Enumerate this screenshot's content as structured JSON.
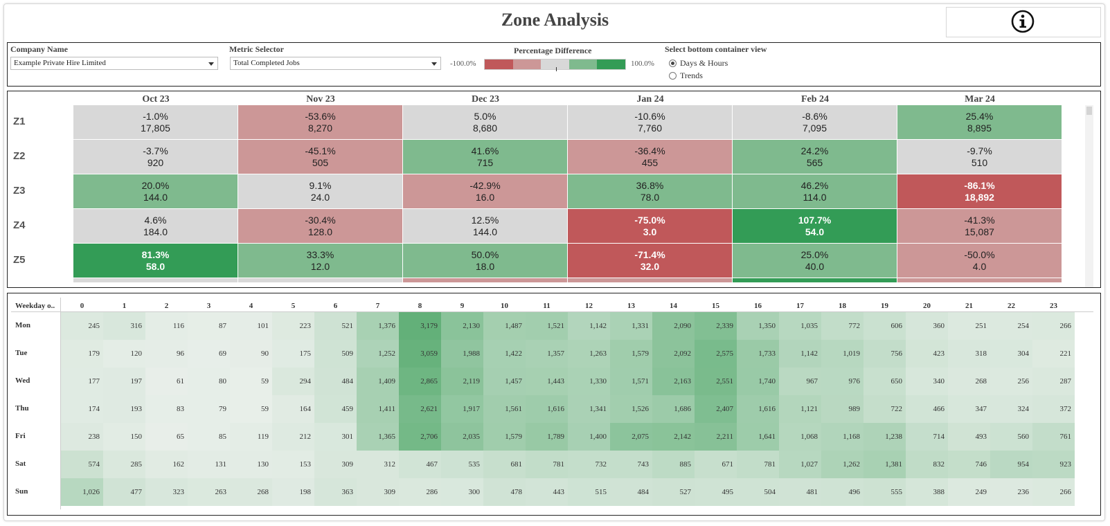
{
  "page": {
    "title": "Zone Analysis",
    "info_icon": "info-icon"
  },
  "controls": {
    "company": {
      "label": "Company Name",
      "value": "Example Private Hire Limited"
    },
    "metric": {
      "label": "Metric Selector",
      "value": "Total Completed Jobs"
    },
    "legend": {
      "label": "Percentage Difference",
      "min": "-100.0%",
      "max": "100.0%",
      "colors": [
        "#c0585a",
        "#cc9797",
        "#d8d8d8",
        "#7fba8e",
        "#339c56"
      ]
    },
    "view": {
      "label": "Select bottom container view",
      "options": [
        "Days & Hours",
        "Trends"
      ],
      "selected": "Days & Hours"
    }
  },
  "chart_data": [
    {
      "type": "heatmap",
      "name": "zone-monthly",
      "x": [
        "Oct 23",
        "Nov 23",
        "Dec 23",
        "Jan 24",
        "Feb 24",
        "Mar 24"
      ],
      "y": [
        "Z1",
        "Z2",
        "Z3",
        "Z4",
        "Z5"
      ],
      "pct": [
        [
          "-1.0%",
          "-53.6%",
          "5.0%",
          "-10.6%",
          "-8.6%",
          "25.4%"
        ],
        [
          "-3.7%",
          "-45.1%",
          "41.6%",
          "-36.4%",
          "24.2%",
          "-9.7%"
        ],
        [
          "20.0%",
          "9.1%",
          "-42.9%",
          "36.8%",
          "46.2%",
          "-86.1%"
        ],
        [
          "4.6%",
          "-30.4%",
          "12.5%",
          "-75.0%",
          "107.7%",
          "-41.3%"
        ],
        [
          "81.3%",
          "33.3%",
          "50.0%",
          "-71.4%",
          "25.0%",
          "-50.0%"
        ]
      ],
      "values": [
        [
          "17,805",
          "8,270",
          "8,680",
          "7,760",
          "7,095",
          "8,895"
        ],
        [
          "920",
          "505",
          "715",
          "455",
          "565",
          "510"
        ],
        [
          "144.0",
          "24.0",
          "16.0",
          "78.0",
          "114.0",
          "18,892"
        ],
        [
          "184.0",
          "128.0",
          "144.0",
          "3.0",
          "54.0",
          "15,087"
        ],
        [
          "58.0",
          "12.0",
          "18.0",
          "32.0",
          "40.0",
          "4.0"
        ]
      ]
    },
    {
      "type": "heatmap",
      "name": "weekday-hour",
      "corner_label": "Weekday o..",
      "x": [
        "0",
        "1",
        "2",
        "3",
        "4",
        "5",
        "6",
        "7",
        "8",
        "9",
        "10",
        "11",
        "12",
        "13",
        "14",
        "15",
        "16",
        "17",
        "18",
        "19",
        "20",
        "21",
        "22",
        "23"
      ],
      "y": [
        "Mon",
        "Tue",
        "Wed",
        "Thu",
        "Fri",
        "Sat",
        "Sun"
      ],
      "values": [
        [
          245,
          316,
          116,
          87,
          101,
          223,
          521,
          1376,
          3179,
          2130,
          1487,
          1521,
          1142,
          1331,
          2090,
          2339,
          1350,
          1035,
          772,
          606,
          360,
          251,
          254,
          266
        ],
        [
          179,
          120,
          96,
          69,
          90,
          175,
          509,
          1252,
          3059,
          1988,
          1422,
          1357,
          1263,
          1579,
          2092,
          2575,
          1733,
          1142,
          1019,
          756,
          423,
          318,
          304,
          221
        ],
        [
          177,
          197,
          61,
          80,
          59,
          294,
          484,
          1409,
          2865,
          2119,
          1457,
          1443,
          1330,
          1571,
          2163,
          2551,
          1740,
          967,
          976,
          650,
          340,
          268,
          256,
          287
        ],
        [
          174,
          193,
          83,
          79,
          59,
          164,
          459,
          1411,
          2621,
          1917,
          1561,
          1616,
          1341,
          1526,
          1686,
          2407,
          1616,
          1121,
          989,
          722,
          466,
          347,
          324,
          372
        ],
        [
          238,
          150,
          65,
          85,
          119,
          212,
          301,
          1365,
          2706,
          2035,
          1579,
          1789,
          1400,
          2075,
          2142,
          2211,
          1641,
          1068,
          1168,
          1238,
          714,
          493,
          560,
          761
        ],
        [
          574,
          285,
          162,
          131,
          130,
          153,
          309,
          312,
          467,
          535,
          681,
          781,
          732,
          743,
          885,
          671,
          781,
          1027,
          1262,
          1381,
          832,
          746,
          954,
          923
        ],
        [
          1026,
          477,
          323,
          263,
          268,
          198,
          363,
          309,
          286,
          300,
          478,
          443,
          515,
          484,
          527,
          495,
          504,
          481,
          496,
          555,
          388,
          249,
          236,
          266
        ]
      ]
    }
  ]
}
